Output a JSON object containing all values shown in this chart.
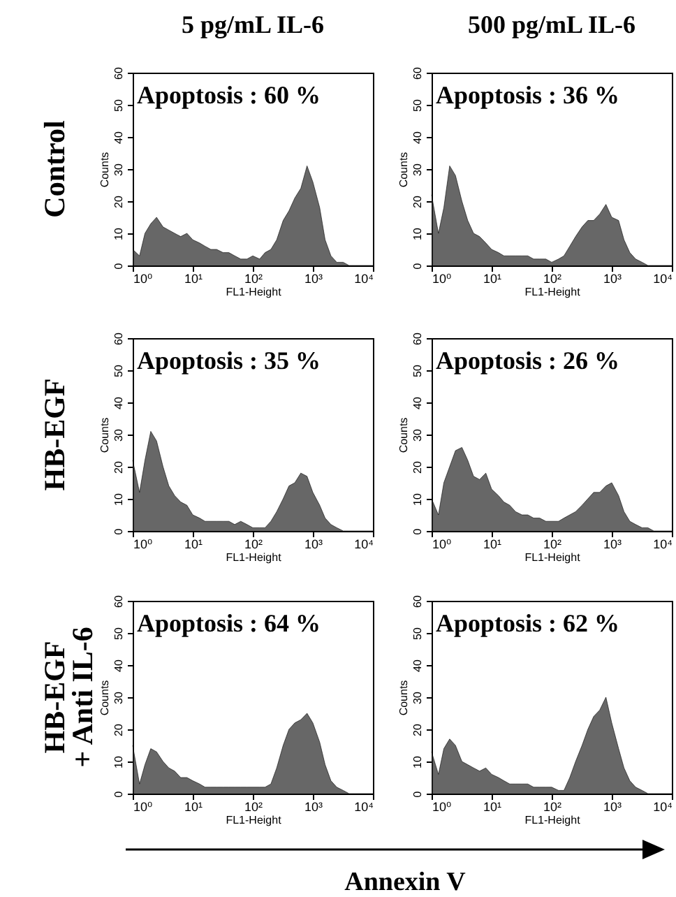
{
  "chart_data": [
    {
      "type": "area",
      "title": "5 pg/mL IL-6",
      "xlabel": "FL1-Height",
      "ylabel": "Counts",
      "annotations": [
        "Apoptosis : 60 %",
        "Control"
      ],
      "log": "x",
      "xlim": [
        1,
        10000
      ],
      "xticks": [
        {
          "value": 1,
          "label": "10⁰"
        },
        {
          "value": 10,
          "label": "10¹"
        },
        {
          "value": 100,
          "label": "10²"
        },
        {
          "value": 1000,
          "label": "10³"
        },
        {
          "value": 10000,
          "label": "10⁴"
        }
      ],
      "ylim": [
        0,
        60
      ],
      "yticks": [
        0,
        10,
        20,
        30,
        40,
        50,
        60
      ],
      "color": "#262626",
      "x": [
        1,
        1.3,
        1.6,
        2,
        2.5,
        3.2,
        4,
        5,
        6.3,
        8,
        10,
        13,
        16,
        20,
        25,
        32,
        40,
        50,
        63,
        80,
        100,
        130,
        160,
        200,
        250,
        320,
        400,
        500,
        630,
        800,
        1000,
        1300,
        1600,
        2000,
        2500,
        3200,
        4000,
        5000,
        10000
      ],
      "values": [
        5,
        3,
        10,
        13,
        15,
        12,
        11,
        10,
        9,
        10,
        8,
        7,
        6,
        5,
        5,
        4,
        4,
        3,
        2,
        2,
        3,
        2,
        4,
        5,
        8,
        14,
        17,
        21,
        24,
        31,
        26,
        18,
        8,
        3,
        1,
        1,
        0,
        0,
        0
      ]
    },
    {
      "type": "area",
      "title": "500 pg/mL IL-6",
      "xlabel": "FL1-Height",
      "ylabel": "Counts",
      "annotations": [
        "Apoptosis : 36 %"
      ],
      "log": "x",
      "xlim": [
        1,
        10000
      ],
      "xticks": [
        {
          "value": 1,
          "label": "10⁰"
        },
        {
          "value": 10,
          "label": "10¹"
        },
        {
          "value": 100,
          "label": "10²"
        },
        {
          "value": 1000,
          "label": "10³"
        },
        {
          "value": 10000,
          "label": "10⁴"
        }
      ],
      "ylim": [
        0,
        60
      ],
      "yticks": [
        0,
        10,
        20,
        30,
        40,
        50,
        60
      ],
      "color": "#262626",
      "x": [
        1,
        1.3,
        1.6,
        2,
        2.5,
        3.2,
        4,
        5,
        6.3,
        8,
        10,
        13,
        16,
        20,
        25,
        32,
        40,
        50,
        63,
        80,
        100,
        130,
        160,
        200,
        250,
        320,
        400,
        500,
        630,
        800,
        1000,
        1300,
        1600,
        2000,
        2500,
        3200,
        4000,
        5000,
        10000
      ],
      "values": [
        22,
        10,
        18,
        31,
        28,
        20,
        14,
        10,
        9,
        7,
        5,
        4,
        3,
        3,
        3,
        3,
        3,
        2,
        2,
        2,
        1,
        2,
        3,
        6,
        9,
        12,
        14,
        14,
        16,
        19,
        15,
        14,
        8,
        4,
        2,
        1,
        0,
        0,
        0
      ]
    },
    {
      "type": "area",
      "xlabel": "FL1-Height",
      "ylabel": "Counts",
      "annotations": [
        "Apoptosis : 35 %",
        "HB-EGF"
      ],
      "log": "x",
      "xlim": [
        1,
        10000
      ],
      "xticks": [
        {
          "value": 1,
          "label": "10⁰"
        },
        {
          "value": 10,
          "label": "10¹"
        },
        {
          "value": 100,
          "label": "10²"
        },
        {
          "value": 1000,
          "label": "10³"
        },
        {
          "value": 10000,
          "label": "10⁴"
        }
      ],
      "ylim": [
        0,
        60
      ],
      "yticks": [
        0,
        10,
        20,
        30,
        40,
        50,
        60
      ],
      "color": "#262626",
      "x": [
        1,
        1.3,
        1.6,
        2,
        2.5,
        3.2,
        4,
        5,
        6.3,
        8,
        10,
        13,
        16,
        20,
        25,
        32,
        40,
        50,
        63,
        80,
        100,
        130,
        160,
        200,
        250,
        320,
        400,
        500,
        630,
        800,
        1000,
        1300,
        1600,
        2000,
        2500,
        3200,
        4000,
        5000,
        10000
      ],
      "values": [
        22,
        12,
        22,
        31,
        28,
        20,
        14,
        11,
        9,
        8,
        5,
        4,
        3,
        3,
        3,
        3,
        3,
        2,
        3,
        2,
        1,
        1,
        1,
        3,
        6,
        10,
        14,
        15,
        18,
        17,
        12,
        8,
        4,
        2,
        1,
        0,
        0,
        0,
        0
      ]
    },
    {
      "type": "area",
      "xlabel": "FL1-Height",
      "ylabel": "Counts",
      "annotations": [
        "Apoptosis : 26 %"
      ],
      "log": "x",
      "xlim": [
        1,
        10000
      ],
      "xticks": [
        {
          "value": 1,
          "label": "10⁰"
        },
        {
          "value": 10,
          "label": "10¹"
        },
        {
          "value": 100,
          "label": "10²"
        },
        {
          "value": 1000,
          "label": "10³"
        },
        {
          "value": 10000,
          "label": "10⁴"
        }
      ],
      "ylim": [
        0,
        60
      ],
      "yticks": [
        0,
        10,
        20,
        30,
        40,
        50,
        60
      ],
      "color": "#262626",
      "x": [
        1,
        1.3,
        1.6,
        2,
        2.5,
        3.2,
        4,
        5,
        6.3,
        8,
        10,
        13,
        16,
        20,
        25,
        32,
        40,
        50,
        63,
        80,
        100,
        130,
        160,
        200,
        250,
        320,
        400,
        500,
        630,
        800,
        1000,
        1300,
        1600,
        2000,
        2500,
        3200,
        4000,
        5000,
        10000
      ],
      "values": [
        10,
        5,
        15,
        20,
        25,
        26,
        22,
        17,
        16,
        18,
        13,
        11,
        9,
        8,
        6,
        5,
        5,
        4,
        4,
        3,
        3,
        3,
        4,
        5,
        6,
        8,
        10,
        12,
        12,
        14,
        15,
        11,
        6,
        3,
        2,
        1,
        1,
        0,
        0
      ]
    },
    {
      "type": "area",
      "xlabel": "FL1-Height",
      "ylabel": "Counts",
      "annotations": [
        "Apoptosis : 64 %",
        "HB-EGF\n+ Anti IL-6"
      ],
      "log": "x",
      "xlim": [
        1,
        10000
      ],
      "xticks": [
        {
          "value": 1,
          "label": "10⁰"
        },
        {
          "value": 10,
          "label": "10¹"
        },
        {
          "value": 100,
          "label": "10²"
        },
        {
          "value": 1000,
          "label": "10³"
        },
        {
          "value": 10000,
          "label": "10⁴"
        }
      ],
      "ylim": [
        0,
        60
      ],
      "yticks": [
        0,
        10,
        20,
        30,
        40,
        50,
        60
      ],
      "color": "#262626",
      "x": [
        1,
        1.3,
        1.6,
        2,
        2.5,
        3.2,
        4,
        5,
        6.3,
        8,
        10,
        13,
        16,
        20,
        25,
        32,
        40,
        50,
        63,
        80,
        100,
        130,
        160,
        200,
        250,
        320,
        400,
        500,
        630,
        800,
        1000,
        1300,
        1600,
        2000,
        2500,
        3200,
        4000,
        5000,
        10000
      ],
      "values": [
        15,
        3,
        9,
        14,
        13,
        10,
        8,
        7,
        5,
        5,
        4,
        3,
        2,
        2,
        2,
        2,
        2,
        2,
        2,
        2,
        2,
        2,
        2,
        3,
        8,
        15,
        20,
        22,
        23,
        25,
        22,
        16,
        9,
        4,
        2,
        1,
        0,
        0,
        0
      ]
    },
    {
      "type": "area",
      "xlabel": "FL1-Height",
      "ylabel": "Counts",
      "annotations": [
        "Apoptosis : 62 %"
      ],
      "log": "x",
      "xlim": [
        1,
        10000
      ],
      "xticks": [
        {
          "value": 1,
          "label": "10⁰"
        },
        {
          "value": 10,
          "label": "10¹"
        },
        {
          "value": 100,
          "label": "10²"
        },
        {
          "value": 1000,
          "label": "10³"
        },
        {
          "value": 10000,
          "label": "10⁴"
        }
      ],
      "ylim": [
        0,
        60
      ],
      "yticks": [
        0,
        10,
        20,
        30,
        40,
        50,
        60
      ],
      "color": "#262626",
      "x": [
        1,
        1.3,
        1.6,
        2,
        2.5,
        3.2,
        4,
        5,
        6.3,
        8,
        10,
        13,
        16,
        20,
        25,
        32,
        40,
        50,
        63,
        80,
        100,
        130,
        160,
        200,
        250,
        320,
        400,
        500,
        630,
        800,
        1000,
        1300,
        1600,
        2000,
        2500,
        3200,
        4000,
        5000,
        10000
      ],
      "values": [
        13,
        6,
        14,
        17,
        15,
        10,
        9,
        8,
        7,
        8,
        6,
        5,
        4,
        3,
        3,
        3,
        3,
        2,
        2,
        2,
        2,
        1,
        1,
        5,
        10,
        15,
        20,
        24,
        26,
        30,
        22,
        14,
        8,
        4,
        2,
        1,
        0,
        0,
        0
      ]
    },
    {
      "type": "other",
      "xlabel": "Annexin V"
    }
  ]
}
